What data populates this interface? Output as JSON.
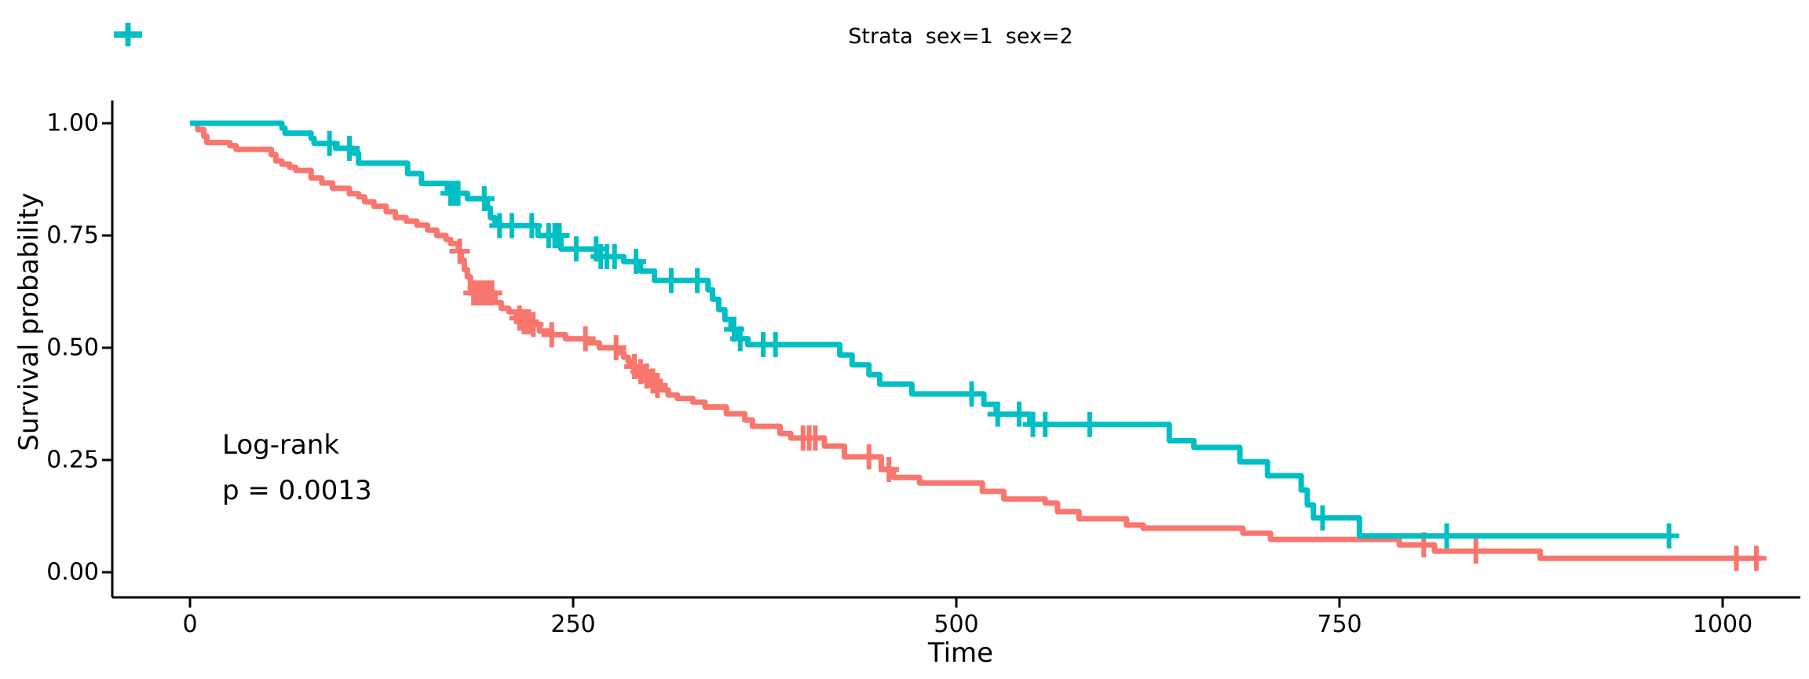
{
  "annotation": {
    "line1": "Log-rank",
    "line2": "p = 0.0013"
  },
  "chart_data": {
    "type": "line",
    "subtype": "kaplan-meier-step-curves",
    "title": "",
    "legend_title": "Strata",
    "legend_position": "top-center",
    "grid": false,
    "xlabel": "Time",
    "ylabel": "Survival probability",
    "xlim": [
      0,
      1050
    ],
    "ylim": [
      0,
      1
    ],
    "x_ticks": [
      0,
      250,
      500,
      750,
      1000
    ],
    "y_ticks": [
      {
        "v": 0.0,
        "label": "0.00"
      },
      {
        "v": 0.25,
        "label": "0.25"
      },
      {
        "v": 0.5,
        "label": "0.50"
      },
      {
        "v": 0.75,
        "label": "0.75"
      },
      {
        "v": 1.0,
        "label": "1.00"
      }
    ],
    "censor_marker": "plus",
    "series": [
      {
        "name": "sex=1",
        "color": "#F8766D",
        "end_time": 1025,
        "steps": [
          [
            0,
            1.0
          ],
          [
            5,
            0.986
          ],
          [
            9,
            0.971
          ],
          [
            11,
            0.957
          ],
          [
            26,
            0.95
          ],
          [
            30,
            0.942
          ],
          [
            53,
            0.93
          ],
          [
            56,
            0.916
          ],
          [
            60,
            0.909
          ],
          [
            65,
            0.902
          ],
          [
            69,
            0.895
          ],
          [
            79,
            0.878
          ],
          [
            86,
            0.867
          ],
          [
            93,
            0.855
          ],
          [
            104,
            0.843
          ],
          [
            110,
            0.836
          ],
          [
            114,
            0.825
          ],
          [
            120,
            0.815
          ],
          [
            128,
            0.803
          ],
          [
            134,
            0.79
          ],
          [
            141,
            0.782
          ],
          [
            148,
            0.773
          ],
          [
            155,
            0.762
          ],
          [
            161,
            0.75
          ],
          [
            167,
            0.741
          ],
          [
            170,
            0.732
          ],
          [
            175,
            0.715
          ],
          [
            177,
            0.695
          ],
          [
            179,
            0.674
          ],
          [
            181,
            0.658
          ],
          [
            183,
            0.622
          ],
          [
            199,
            0.601
          ],
          [
            203,
            0.588
          ],
          [
            208,
            0.58
          ],
          [
            213,
            0.566
          ],
          [
            218,
            0.558
          ],
          [
            222,
            0.552
          ],
          [
            228,
            0.537
          ],
          [
            236,
            0.529
          ],
          [
            245,
            0.52
          ],
          [
            260,
            0.511
          ],
          [
            267,
            0.5
          ],
          [
            279,
            0.489
          ],
          [
            283,
            0.479
          ],
          [
            286,
            0.469
          ],
          [
            289,
            0.458
          ],
          [
            293,
            0.447
          ],
          [
            297,
            0.437
          ],
          [
            300,
            0.426
          ],
          [
            304,
            0.416
          ],
          [
            308,
            0.406
          ],
          [
            312,
            0.395
          ],
          [
            318,
            0.387
          ],
          [
            328,
            0.379
          ],
          [
            336,
            0.368
          ],
          [
            350,
            0.353
          ],
          [
            362,
            0.339
          ],
          [
            367,
            0.325
          ],
          [
            385,
            0.309
          ],
          [
            392,
            0.299
          ],
          [
            414,
            0.281
          ],
          [
            427,
            0.257
          ],
          [
            451,
            0.229
          ],
          [
            459,
            0.211
          ],
          [
            476,
            0.199
          ],
          [
            517,
            0.18
          ],
          [
            531,
            0.163
          ],
          [
            558,
            0.154
          ],
          [
            566,
            0.135
          ],
          [
            580,
            0.119
          ],
          [
            611,
            0.105
          ],
          [
            622,
            0.098
          ],
          [
            687,
            0.087
          ],
          [
            705,
            0.073
          ],
          [
            789,
            0.061
          ],
          [
            812,
            0.047
          ],
          [
            881,
            0.031
          ]
        ],
        "censor_times": [
          176,
          185,
          188,
          191,
          194,
          197,
          215,
          218,
          221,
          224,
          236,
          258,
          278,
          290,
          294,
          298,
          302,
          305,
          400,
          404,
          408,
          443,
          456,
          805,
          839,
          1009,
          1022
        ]
      },
      {
        "name": "sex=2",
        "color": "#00BFC4",
        "end_time": 965,
        "steps": [
          [
            0,
            1.0
          ],
          [
            60,
            0.989
          ],
          [
            62,
            0.978
          ],
          [
            79,
            0.966
          ],
          [
            81,
            0.955
          ],
          [
            95,
            0.944
          ],
          [
            107,
            0.933
          ],
          [
            110,
            0.911
          ],
          [
            142,
            0.888
          ],
          [
            151,
            0.866
          ],
          [
            168,
            0.844
          ],
          [
            181,
            0.832
          ],
          [
            194,
            0.811
          ],
          [
            196,
            0.79
          ],
          [
            199,
            0.781
          ],
          [
            202,
            0.772
          ],
          [
            227,
            0.75
          ],
          [
            242,
            0.72
          ],
          [
            266,
            0.703
          ],
          [
            283,
            0.692
          ],
          [
            294,
            0.671
          ],
          [
            303,
            0.65
          ],
          [
            338,
            0.629
          ],
          [
            341,
            0.608
          ],
          [
            345,
            0.585
          ],
          [
            349,
            0.563
          ],
          [
            353,
            0.541
          ],
          [
            358,
            0.52
          ],
          [
            364,
            0.507
          ],
          [
            424,
            0.484
          ],
          [
            432,
            0.462
          ],
          [
            443,
            0.44
          ],
          [
            450,
            0.419
          ],
          [
            471,
            0.397
          ],
          [
            518,
            0.374
          ],
          [
            526,
            0.352
          ],
          [
            548,
            0.329
          ],
          [
            639,
            0.293
          ],
          [
            655,
            0.278
          ],
          [
            685,
            0.246
          ],
          [
            703,
            0.215
          ],
          [
            725,
            0.183
          ],
          [
            729,
            0.15
          ],
          [
            733,
            0.121
          ],
          [
            763,
            0.081
          ]
        ],
        "censor_times": [
          91,
          104,
          170,
          173,
          175,
          192,
          202,
          210,
          223,
          234,
          238,
          241,
          252,
          265,
          268,
          272,
          277,
          291,
          314,
          331,
          355,
          359,
          374,
          382,
          510,
          527,
          541,
          550,
          558,
          587,
          739,
          820,
          965
        ]
      }
    ]
  }
}
